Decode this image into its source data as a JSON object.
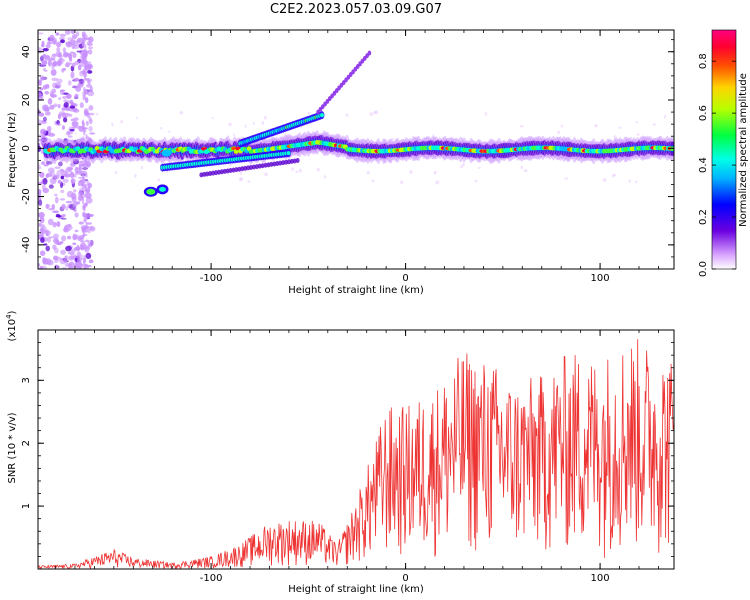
{
  "title": "C2E2.2023.057.03.09.G07",
  "chart_data": [
    {
      "type": "heatmap",
      "xlabel": "Height of straight line (km)",
      "ylabel": "Frequency (Hz)",
      "xlim": [
        -189,
        138
      ],
      "ylim": [
        -50,
        49
      ],
      "xticks": [
        -100,
        0,
        100
      ],
      "yticks": [
        -40,
        -20,
        0,
        20,
        40
      ],
      "colorbar": {
        "label": "Normalized spectral amplitude",
        "range": [
          0,
          0.92
        ],
        "ticks": [
          0.0,
          0.2,
          0.4,
          0.6,
          0.8
        ]
      },
      "features": [
        {
          "x": [
            -185,
            138
          ],
          "y": 0,
          "description": "main band"
        },
        {
          "x": [
            -135,
            -125
          ],
          "y": -18,
          "description": "side blob"
        },
        {
          "x": [
            -45,
            -18
          ],
          "y": [
            15,
            40
          ],
          "description": "rising trace"
        }
      ]
    },
    {
      "type": "line",
      "xlabel": "Height of straight line (km)",
      "ylabel": "SNR (10 * v/v)",
      "multiplier": "(x10",
      "multiplier_exp": "4",
      "multiplier_close": ")",
      "xlim": [
        -189,
        138
      ],
      "ylim": [
        0,
        3.8
      ],
      "xticks": [
        -100,
        0,
        100
      ],
      "yticks": [
        1,
        2,
        3
      ],
      "color": "#ee3333",
      "envelope": [
        {
          "x": -189,
          "y": 0.05
        },
        {
          "x": -170,
          "y": 0.08
        },
        {
          "x": -160,
          "y": 0.2
        },
        {
          "x": -150,
          "y": 0.32
        },
        {
          "x": -140,
          "y": 0.18
        },
        {
          "x": -120,
          "y": 0.1
        },
        {
          "x": -100,
          "y": 0.2
        },
        {
          "x": -85,
          "y": 0.4
        },
        {
          "x": -70,
          "y": 0.75
        },
        {
          "x": -60,
          "y": 0.8
        },
        {
          "x": -45,
          "y": 0.78
        },
        {
          "x": -35,
          "y": 0.4
        },
        {
          "x": -28,
          "y": 0.9
        },
        {
          "x": -20,
          "y": 1.6
        },
        {
          "x": -10,
          "y": 2.6
        },
        {
          "x": 0,
          "y": 2.6
        },
        {
          "x": 15,
          "y": 2.9
        },
        {
          "x": 30,
          "y": 3.5
        },
        {
          "x": 45,
          "y": 3.3
        },
        {
          "x": 55,
          "y": 3.0
        },
        {
          "x": 70,
          "y": 3.1
        },
        {
          "x": 85,
          "y": 3.5
        },
        {
          "x": 100,
          "y": 3.4
        },
        {
          "x": 115,
          "y": 3.75
        },
        {
          "x": 125,
          "y": 3.6
        },
        {
          "x": 138,
          "y": 3.4
        }
      ]
    }
  ]
}
